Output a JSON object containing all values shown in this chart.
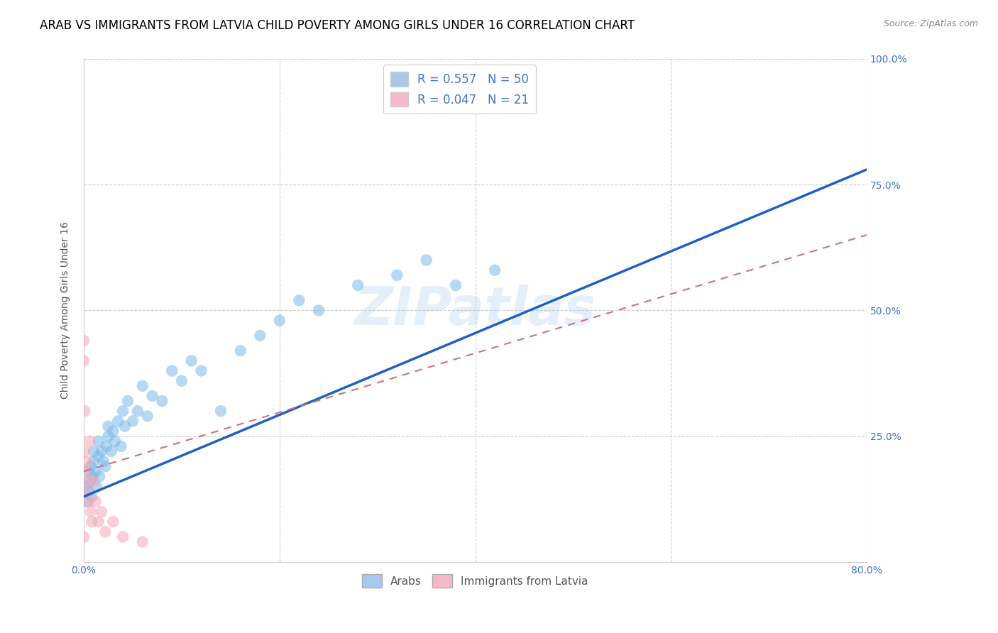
{
  "title": "ARAB VS IMMIGRANTS FROM LATVIA CHILD POVERTY AMONG GIRLS UNDER 16 CORRELATION CHART",
  "source": "Source: ZipAtlas.com",
  "ylabel": "Child Poverty Among Girls Under 16",
  "xlim": [
    0.0,
    0.8
  ],
  "ylim": [
    0.0,
    1.0
  ],
  "xticks": [
    0.0,
    0.2,
    0.4,
    0.6,
    0.8
  ],
  "xtick_labels": [
    "0.0%",
    "",
    "",
    "",
    "80.0%"
  ],
  "ytick_labels": [
    "",
    "25.0%",
    "50.0%",
    "75.0%",
    "100.0%"
  ],
  "yticks": [
    0.0,
    0.25,
    0.5,
    0.75,
    1.0
  ],
  "legend_labels_bottom": [
    "Arabs",
    "Immigrants from Latvia"
  ],
  "blue_scatter_color": "#7ab8e8",
  "pink_scatter_color": "#f4a8b8",
  "blue_line_color": "#2060c0",
  "pink_line_color": "#d07080",
  "watermark": "ZIPatlas",
  "arab_R": 0.557,
  "arab_N": 50,
  "latvia_R": 0.047,
  "latvia_N": 21,
  "arab_x": [
    0.002,
    0.003,
    0.004,
    0.005,
    0.006,
    0.007,
    0.008,
    0.009,
    0.01,
    0.01,
    0.012,
    0.013,
    0.015,
    0.015,
    0.016,
    0.018,
    0.02,
    0.022,
    0.023,
    0.025,
    0.025,
    0.028,
    0.03,
    0.032,
    0.035,
    0.038,
    0.04,
    0.042,
    0.045,
    0.05,
    0.055,
    0.06,
    0.065,
    0.07,
    0.08,
    0.09,
    0.1,
    0.11,
    0.12,
    0.14,
    0.16,
    0.18,
    0.2,
    0.22,
    0.24,
    0.28,
    0.32,
    0.35,
    0.38,
    0.42
  ],
  "arab_y": [
    0.15,
    0.12,
    0.18,
    0.14,
    0.16,
    0.19,
    0.13,
    0.17,
    0.2,
    0.22,
    0.18,
    0.15,
    0.21,
    0.24,
    0.17,
    0.22,
    0.2,
    0.19,
    0.23,
    0.25,
    0.27,
    0.22,
    0.26,
    0.24,
    0.28,
    0.23,
    0.3,
    0.27,
    0.32,
    0.28,
    0.3,
    0.35,
    0.29,
    0.33,
    0.32,
    0.38,
    0.36,
    0.4,
    0.38,
    0.3,
    0.42,
    0.45,
    0.48,
    0.52,
    0.5,
    0.55,
    0.57,
    0.6,
    0.55,
    0.58
  ],
  "latvia_x": [
    0.0,
    0.0,
    0.0,
    0.001,
    0.001,
    0.002,
    0.002,
    0.003,
    0.004,
    0.005,
    0.006,
    0.007,
    0.008,
    0.01,
    0.012,
    0.015,
    0.018,
    0.022,
    0.03,
    0.04,
    0.06
  ],
  "latvia_y": [
    0.44,
    0.4,
    0.05,
    0.3,
    0.22,
    0.18,
    0.14,
    0.2,
    0.16,
    0.12,
    0.24,
    0.1,
    0.08,
    0.16,
    0.12,
    0.08,
    0.1,
    0.06,
    0.08,
    0.05,
    0.04
  ],
  "blue_line_x0": 0.0,
  "blue_line_y0": 0.13,
  "blue_line_x1": 0.8,
  "blue_line_y1": 0.78,
  "pink_line_x0": 0.0,
  "pink_line_y0": 0.18,
  "pink_line_x1": 0.8,
  "pink_line_y1": 0.65,
  "title_fontsize": 12,
  "axis_label_fontsize": 10,
  "tick_fontsize": 10,
  "marker_size": 140,
  "alpha": 0.55
}
